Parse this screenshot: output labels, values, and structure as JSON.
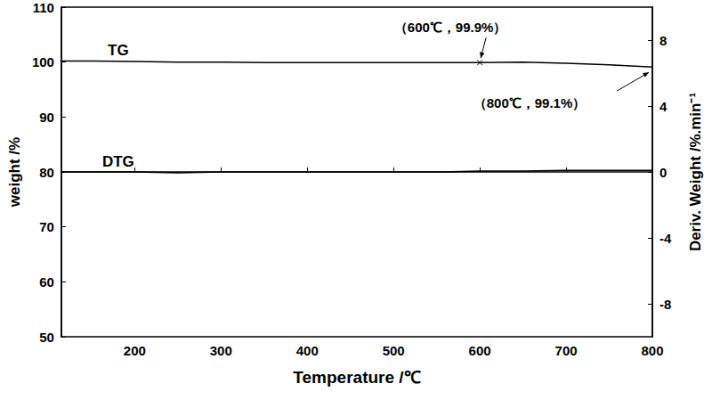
{
  "chart_data": {
    "type": "line",
    "x_label": "Temperature /℃",
    "y_label": "weight /%",
    "y2_label": "Deriv. Weight /%.min⁻¹",
    "x": [
      115,
      150,
      200,
      250,
      300,
      350,
      400,
      450,
      500,
      550,
      600,
      650,
      700,
      750,
      800
    ],
    "series": [
      {
        "name": "TG",
        "color": "#000000",
        "values": [
          100.2,
          100.2,
          100.1,
          100.0,
          100.0,
          99.9,
          99.9,
          99.9,
          99.9,
          99.9,
          99.9,
          100.0,
          99.8,
          99.5,
          99.1
        ]
      },
      {
        "name": "DTG",
        "color": "#000000",
        "axis": "y2",
        "values": [
          0.0,
          0.0,
          0.0,
          -0.05,
          0.0,
          0.0,
          0.0,
          0.0,
          0.0,
          0.0,
          0.05,
          0.05,
          0.1,
          0.1,
          0.1
        ]
      }
    ],
    "annotations": [
      {
        "text": "（600℃，99.9%）",
        "x": 600,
        "y": 99.9
      },
      {
        "text": "（800℃，99.1%）",
        "x": 800,
        "y": 99.1
      }
    ],
    "xlim": [
      115,
      800
    ],
    "xticks": [
      200,
      300,
      400,
      500,
      600,
      700,
      800
    ],
    "ylim": [
      50,
      110
    ],
    "yticks": [
      50,
      60,
      70,
      80,
      90,
      100,
      110
    ],
    "y2lim": [
      -10,
      10
    ],
    "y2ticks": [
      -8,
      -4,
      0,
      4,
      8
    ],
    "grid": false
  }
}
